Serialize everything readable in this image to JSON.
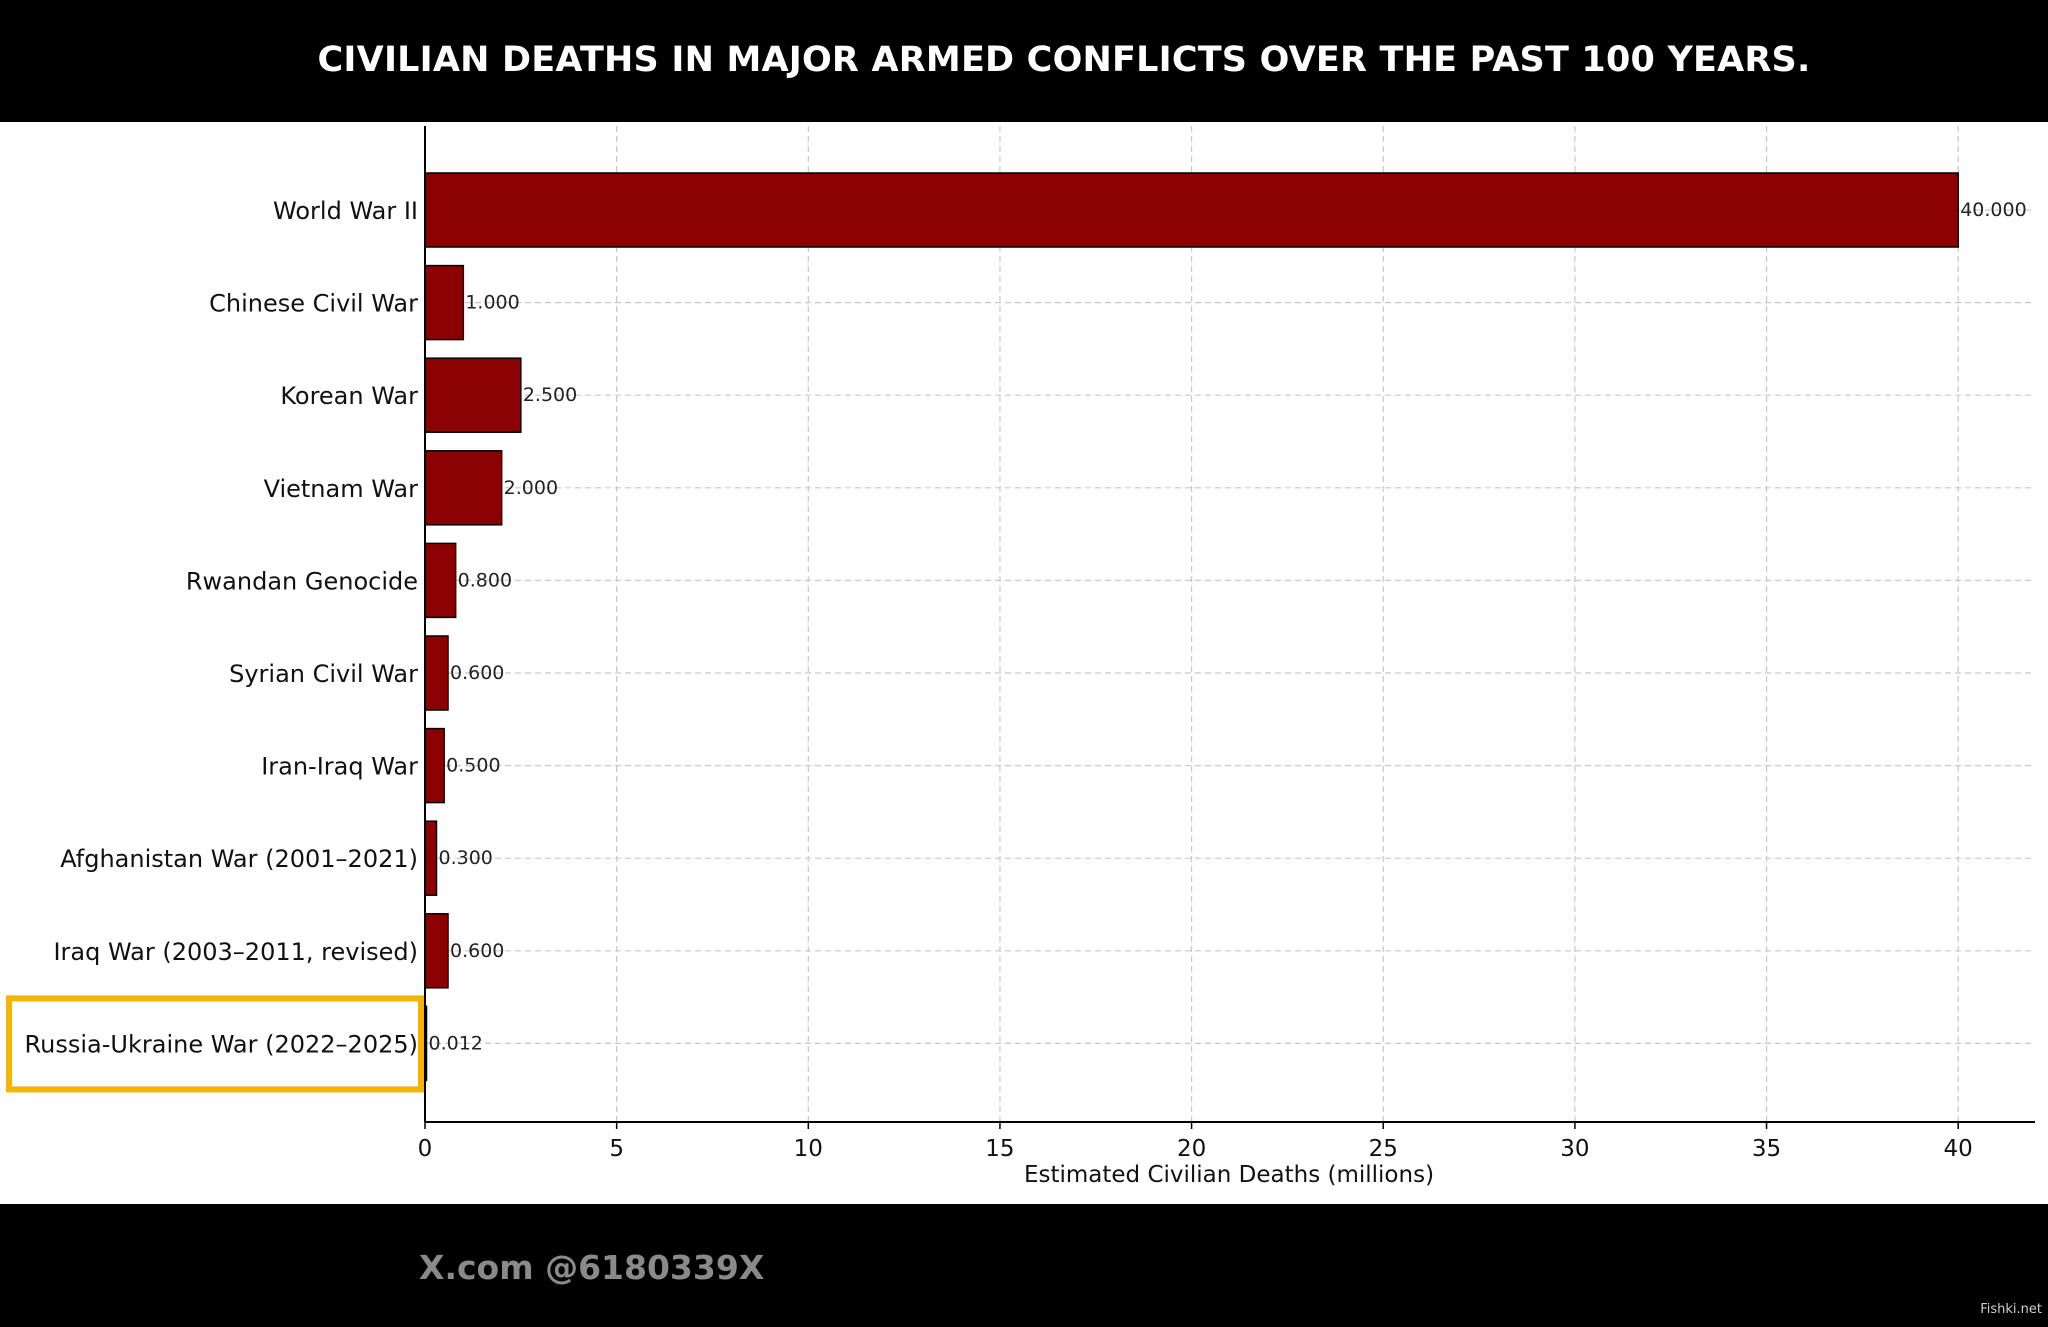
{
  "header": {
    "title": "CIVILIAN DEATHS IN MAJOR ARMED CONFLICTS OVER THE PAST 100 YEARS."
  },
  "footer": {
    "handle": "X.com @6180339X",
    "watermark": "Fishki.net"
  },
  "colors": {
    "bar": "#8b0000",
    "highlight": "#f5b400",
    "grid": "#c8c8c8"
  },
  "chart_data": {
    "type": "bar",
    "orientation": "horizontal",
    "categories": [
      "World War II",
      "Chinese Civil War",
      "Korean War",
      "Vietnam War",
      "Rwandan Genocide",
      "Syrian Civil War",
      "Iran-Iraq War",
      "Afghanistan War (2001–2021)",
      "Iraq War (2003–2011, revised)",
      "Russia-Ukraine War (2022–2025)"
    ],
    "values": [
      40.0,
      1.0,
      2.5,
      2.0,
      0.8,
      0.6,
      0.5,
      0.3,
      0.6,
      0.012
    ],
    "value_labels": [
      "40.000",
      "1.000",
      "2.500",
      "2.000",
      "0.800",
      "0.600",
      "0.500",
      "0.300",
      "0.600",
      "0.012"
    ],
    "title": "",
    "xlabel": "Estimated Civilian Deaths (millions)",
    "ylabel": "",
    "xlim": [
      0,
      42
    ],
    "xticks": [
      0,
      5,
      10,
      15,
      20,
      25,
      30,
      35,
      40
    ],
    "grid": true,
    "highlighted_category": "Russia-Ukraine War (2022–2025)"
  }
}
